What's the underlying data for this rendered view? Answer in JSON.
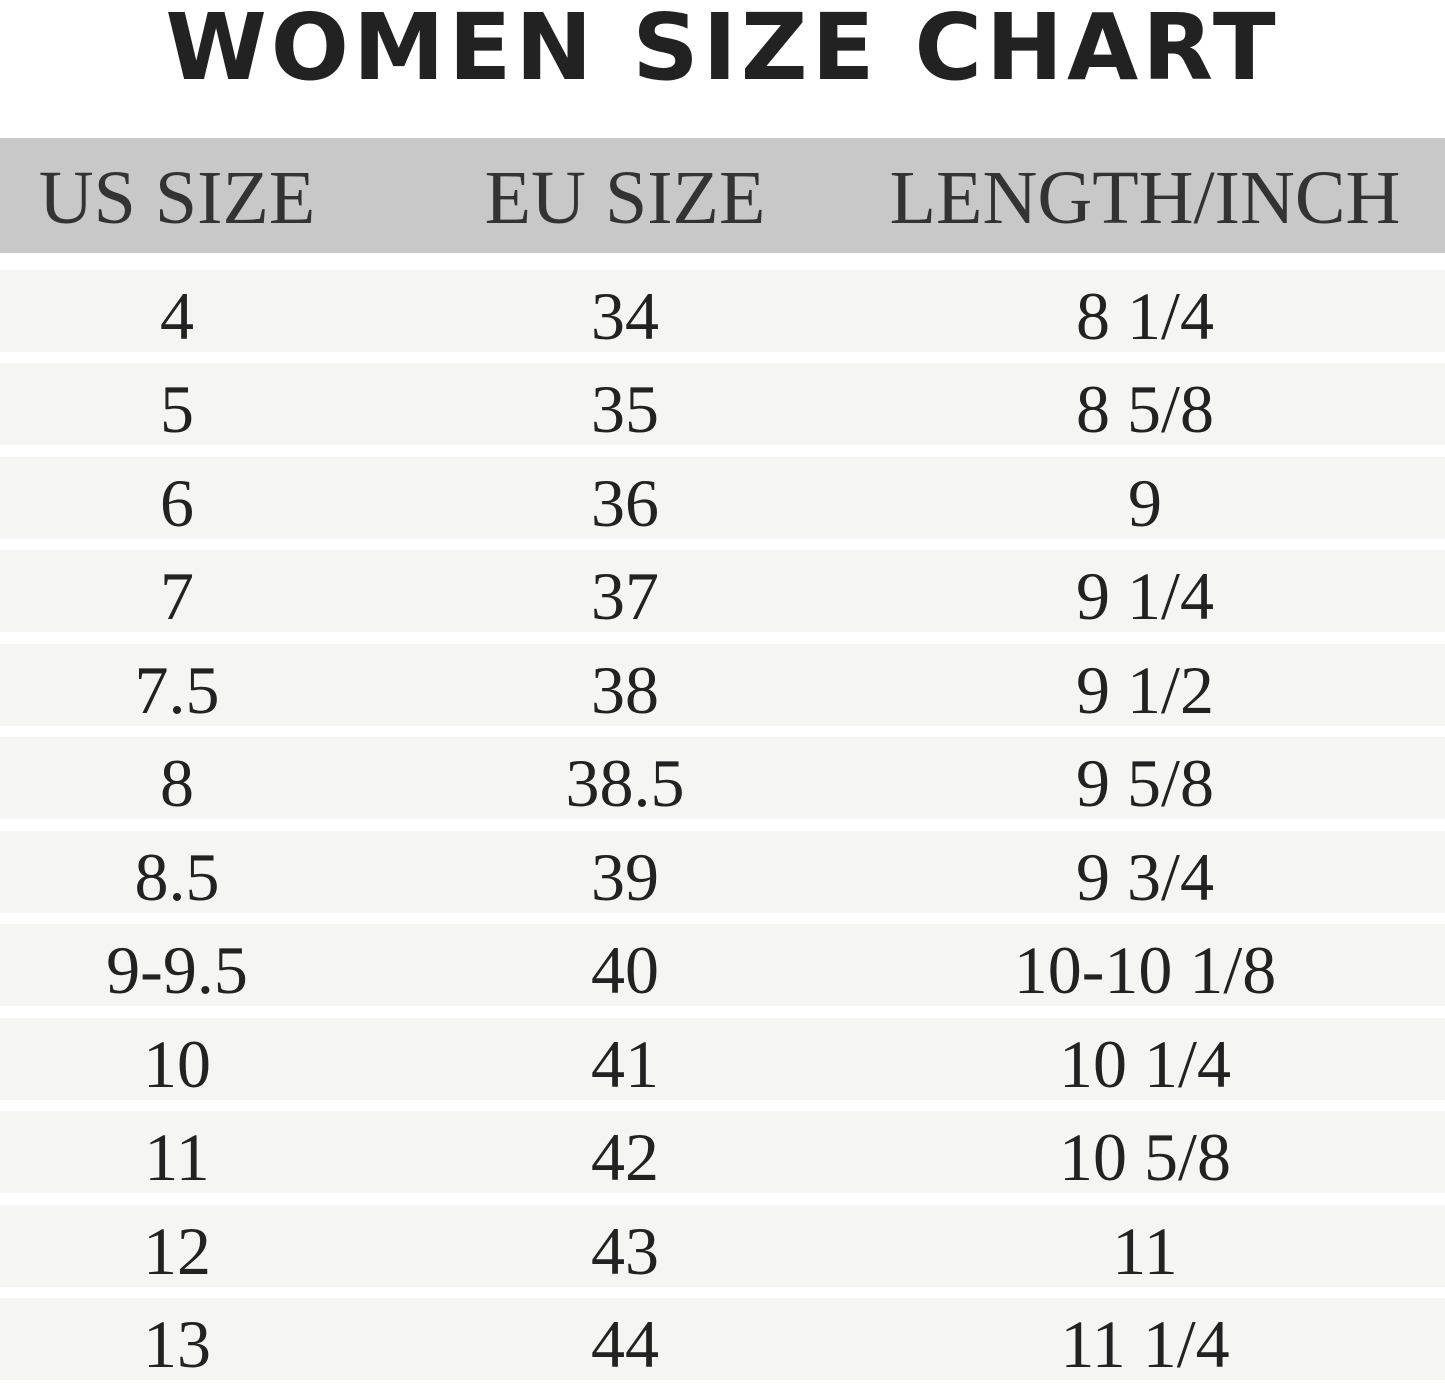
{
  "title": "WOMEN SIZE CHART",
  "table": {
    "header": [
      "US SIZE",
      "EU SIZE",
      "LENGTH/INCH"
    ],
    "rows": [
      [
        "4",
        "34",
        "8 1/4"
      ],
      [
        "5",
        "35",
        "8 5/8"
      ],
      [
        "6",
        "36",
        "9"
      ],
      [
        "7",
        "37",
        "9 1/4"
      ],
      [
        "7.5",
        "38",
        "9 1/2"
      ],
      [
        "8",
        "38.5",
        "9 5/8"
      ],
      [
        "8.5",
        "39",
        "9 3/4"
      ],
      [
        "9-9.5",
        "40",
        "10-10 1/8"
      ],
      [
        "10",
        "41",
        "10 1/4"
      ],
      [
        "11",
        "42",
        "10 5/8"
      ],
      [
        "12",
        "43",
        "11"
      ],
      [
        "13",
        "44",
        "11 1/4"
      ]
    ]
  }
}
